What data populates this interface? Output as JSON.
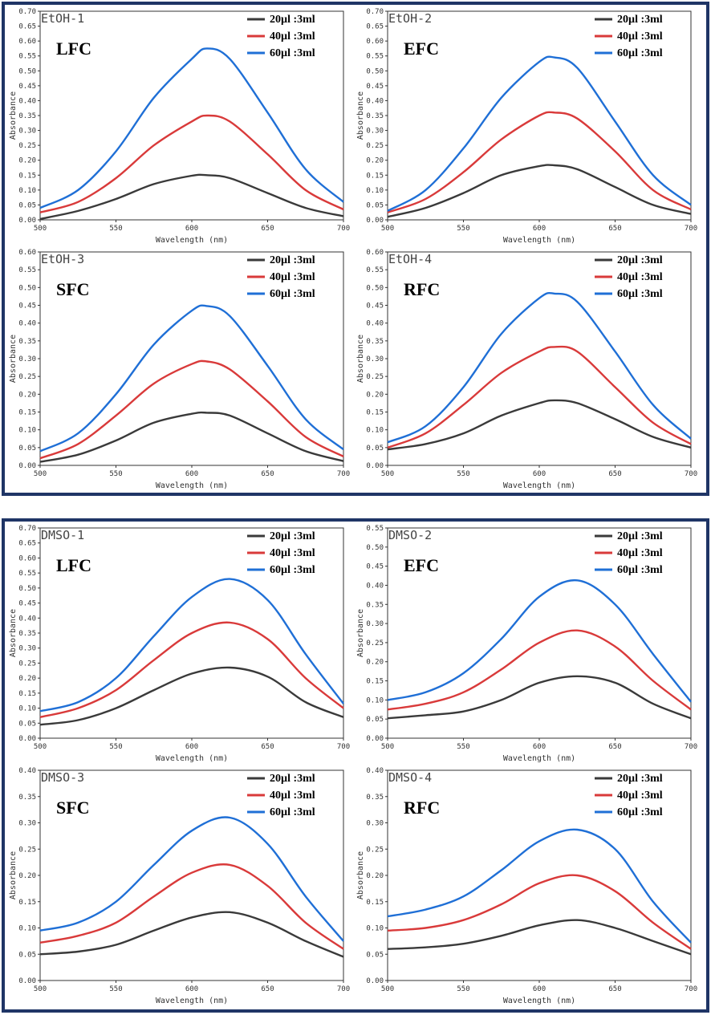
{
  "groups": [
    {
      "name": "ethanol"
    },
    {
      "name": "dmso"
    }
  ],
  "chart_data": [
    {
      "type": "line",
      "sample_label": "EtOH-1",
      "fraction_label": "LFC",
      "xlabel": "Wavelength (nm)",
      "ylabel": "Absorbance",
      "xlim": [
        500,
        700
      ],
      "ylim": [
        0,
        0.7
      ],
      "x_ticks": [
        "500",
        "550",
        "600",
        "650",
        "700"
      ],
      "y_ticks": [
        "0.00",
        "0.05",
        "0.10",
        "0.15",
        "0.20",
        "0.25",
        "0.30",
        "0.35",
        "0.40",
        "0.45",
        "0.50",
        "0.55",
        "0.60",
        "0.65",
        "0.70"
      ],
      "x": [
        500,
        525,
        550,
        575,
        600,
        610,
        625,
        650,
        675,
        700
      ],
      "legend_position": "top-right",
      "series": [
        {
          "name": "20µl :3ml",
          "color": "#3a3a3a",
          "values": [
            0.003,
            0.03,
            0.07,
            0.12,
            0.148,
            0.15,
            0.14,
            0.09,
            0.04,
            0.012
          ]
        },
        {
          "name": "40µl :3ml",
          "color": "#d93a3a",
          "values": [
            0.025,
            0.06,
            0.14,
            0.25,
            0.33,
            0.35,
            0.33,
            0.22,
            0.1,
            0.035
          ]
        },
        {
          "name": "60µl :3ml",
          "color": "#1f6fd6",
          "values": [
            0.04,
            0.1,
            0.23,
            0.41,
            0.54,
            0.575,
            0.54,
            0.36,
            0.17,
            0.06
          ]
        }
      ]
    },
    {
      "type": "line",
      "sample_label": "EtOH-2",
      "fraction_label": "EFC",
      "xlabel": "Wavelength (nm)",
      "ylabel": "Absorbance",
      "xlim": [
        500,
        700
      ],
      "ylim": [
        0,
        0.7
      ],
      "x_ticks": [
        "500",
        "550",
        "600",
        "650",
        "700"
      ],
      "y_ticks": [
        "0.00",
        "0.05",
        "0.10",
        "0.15",
        "0.20",
        "0.25",
        "0.30",
        "0.35",
        "0.40",
        "0.45",
        "0.50",
        "0.55",
        "0.60",
        "0.65",
        "0.70"
      ],
      "x": [
        500,
        525,
        550,
        575,
        600,
        610,
        625,
        650,
        675,
        700
      ],
      "legend_position": "top-right",
      "series": [
        {
          "name": "20µl :3ml",
          "color": "#3a3a3a",
          "values": [
            0.01,
            0.04,
            0.09,
            0.15,
            0.18,
            0.183,
            0.17,
            0.11,
            0.05,
            0.02
          ]
        },
        {
          "name": "40µl :3ml",
          "color": "#d93a3a",
          "values": [
            0.025,
            0.07,
            0.16,
            0.27,
            0.35,
            0.36,
            0.34,
            0.23,
            0.1,
            0.035
          ]
        },
        {
          "name": "60µl :3ml",
          "color": "#1f6fd6",
          "values": [
            0.03,
            0.1,
            0.24,
            0.41,
            0.53,
            0.545,
            0.51,
            0.33,
            0.15,
            0.05
          ]
        }
      ]
    },
    {
      "type": "line",
      "sample_label": "EtOH-3",
      "fraction_label": "SFC",
      "xlabel": "Wavelength (nm)",
      "ylabel": "Absorbance",
      "xlim": [
        500,
        700
      ],
      "ylim": [
        0,
        0.6
      ],
      "x_ticks": [
        "500",
        "550",
        "600",
        "650",
        "700"
      ],
      "y_ticks": [
        "0.00",
        "0.05",
        "0.10",
        "0.15",
        "0.20",
        "0.25",
        "0.30",
        "0.35",
        "0.40",
        "0.45",
        "0.50",
        "0.55",
        "0.60"
      ],
      "x": [
        500,
        525,
        550,
        575,
        600,
        610,
        625,
        650,
        675,
        700
      ],
      "legend_position": "top-right",
      "series": [
        {
          "name": "20µl :3ml",
          "color": "#3a3a3a",
          "values": [
            0.01,
            0.03,
            0.07,
            0.12,
            0.145,
            0.148,
            0.14,
            0.09,
            0.04,
            0.012
          ]
        },
        {
          "name": "40µl :3ml",
          "color": "#d93a3a",
          "values": [
            0.02,
            0.06,
            0.14,
            0.23,
            0.285,
            0.292,
            0.27,
            0.18,
            0.08,
            0.025
          ]
        },
        {
          "name": "60µl :3ml",
          "color": "#1f6fd6",
          "values": [
            0.04,
            0.09,
            0.2,
            0.34,
            0.435,
            0.448,
            0.42,
            0.28,
            0.13,
            0.045
          ]
        }
      ]
    },
    {
      "type": "line",
      "sample_label": "EtOH-4",
      "fraction_label": "RFC",
      "xlabel": "Wavelength (nm)",
      "ylabel": "Absorbance",
      "xlim": [
        500,
        700
      ],
      "ylim": [
        0,
        0.6
      ],
      "x_ticks": [
        "500",
        "550",
        "600",
        "650",
        "700"
      ],
      "y_ticks": [
        "0.00",
        "0.05",
        "0.10",
        "0.15",
        "0.20",
        "0.25",
        "0.30",
        "0.35",
        "0.40",
        "0.45",
        "0.50",
        "0.55",
        "0.60"
      ],
      "x": [
        500,
        525,
        550,
        575,
        600,
        610,
        625,
        650,
        675,
        700
      ],
      "legend_position": "top-right",
      "series": [
        {
          "name": "20µl :3ml",
          "color": "#3a3a3a",
          "values": [
            0.045,
            0.06,
            0.09,
            0.14,
            0.175,
            0.183,
            0.175,
            0.13,
            0.08,
            0.05
          ]
        },
        {
          "name": "40µl :3ml",
          "color": "#d93a3a",
          "values": [
            0.05,
            0.09,
            0.17,
            0.26,
            0.32,
            0.333,
            0.32,
            0.22,
            0.12,
            0.06
          ]
        },
        {
          "name": "60µl :3ml",
          "color": "#1f6fd6",
          "values": [
            0.065,
            0.11,
            0.22,
            0.37,
            0.47,
            0.483,
            0.46,
            0.32,
            0.17,
            0.075
          ]
        }
      ]
    },
    {
      "type": "line",
      "sample_label": "DMSO-1",
      "fraction_label": "LFC",
      "xlabel": "Wavelength (nm)",
      "ylabel": "Absorbance",
      "xlim": [
        500,
        700
      ],
      "ylim": [
        0,
        0.7
      ],
      "x_ticks": [
        "500",
        "550",
        "600",
        "650",
        "700"
      ],
      "y_ticks": [
        "0.00",
        "0.05",
        "0.10",
        "0.15",
        "0.20",
        "0.25",
        "0.30",
        "0.35",
        "0.40",
        "0.45",
        "0.50",
        "0.55",
        "0.60",
        "0.65",
        "0.70"
      ],
      "x": [
        500,
        525,
        550,
        575,
        600,
        625,
        650,
        675,
        700
      ],
      "legend_position": "top-right",
      "series": [
        {
          "name": "20µl :3ml",
          "color": "#3a3a3a",
          "values": [
            0.045,
            0.06,
            0.1,
            0.16,
            0.215,
            0.235,
            0.205,
            0.12,
            0.07
          ]
        },
        {
          "name": "40µl :3ml",
          "color": "#d93a3a",
          "values": [
            0.07,
            0.1,
            0.16,
            0.26,
            0.35,
            0.385,
            0.33,
            0.2,
            0.1
          ]
        },
        {
          "name": "60µl :3ml",
          "color": "#1f6fd6",
          "values": [
            0.09,
            0.12,
            0.2,
            0.34,
            0.47,
            0.53,
            0.46,
            0.28,
            0.115
          ]
        }
      ]
    },
    {
      "type": "line",
      "sample_label": "DMSO-2",
      "fraction_label": "EFC",
      "xlabel": "Wavelength (nm)",
      "ylabel": "Absorbance",
      "xlim": [
        500,
        700
      ],
      "ylim": [
        0,
        0.55
      ],
      "x_ticks": [
        "500",
        "550",
        "600",
        "650",
        "700"
      ],
      "y_ticks": [
        "0.00",
        "0.05",
        "0.10",
        "0.15",
        "0.20",
        "0.25",
        "0.30",
        "0.35",
        "0.40",
        "0.45",
        "0.50",
        "0.55"
      ],
      "x": [
        500,
        525,
        550,
        575,
        600,
        625,
        650,
        675,
        700
      ],
      "legend_position": "top-right",
      "series": [
        {
          "name": "20µl :3ml",
          "color": "#3a3a3a",
          "values": [
            0.052,
            0.06,
            0.07,
            0.1,
            0.145,
            0.162,
            0.145,
            0.09,
            0.052
          ]
        },
        {
          "name": "40µl :3ml",
          "color": "#d93a3a",
          "values": [
            0.075,
            0.09,
            0.12,
            0.18,
            0.25,
            0.282,
            0.24,
            0.15,
            0.075
          ]
        },
        {
          "name": "60µl :3ml",
          "color": "#1f6fd6",
          "values": [
            0.1,
            0.12,
            0.17,
            0.26,
            0.37,
            0.413,
            0.35,
            0.22,
            0.095
          ]
        }
      ]
    },
    {
      "type": "line",
      "sample_label": "DMSO-3",
      "fraction_label": "SFC",
      "xlabel": "Wavelength (nm)",
      "ylabel": "Absorbance",
      "xlim": [
        500,
        700
      ],
      "ylim": [
        0,
        0.4
      ],
      "x_ticks": [
        "500",
        "550",
        "600",
        "650",
        "700"
      ],
      "y_ticks": [
        "0.00",
        "0.05",
        "0.10",
        "0.15",
        "0.20",
        "0.25",
        "0.30",
        "0.35",
        "0.40"
      ],
      "x": [
        500,
        525,
        550,
        575,
        600,
        625,
        650,
        675,
        700
      ],
      "legend_position": "top-right",
      "series": [
        {
          "name": "20µl :3ml",
          "color": "#3a3a3a",
          "values": [
            0.05,
            0.055,
            0.068,
            0.095,
            0.12,
            0.13,
            0.11,
            0.075,
            0.045
          ]
        },
        {
          "name": "40µl :3ml",
          "color": "#d93a3a",
          "values": [
            0.072,
            0.085,
            0.11,
            0.16,
            0.205,
            0.22,
            0.18,
            0.11,
            0.06
          ]
        },
        {
          "name": "60µl :3ml",
          "color": "#1f6fd6",
          "values": [
            0.095,
            0.11,
            0.15,
            0.22,
            0.285,
            0.31,
            0.26,
            0.16,
            0.075
          ]
        }
      ]
    },
    {
      "type": "line",
      "sample_label": "DMSO-4",
      "fraction_label": "RFC",
      "xlabel": "Wavelength (nm)",
      "ylabel": "Absorbance",
      "xlim": [
        500,
        700
      ],
      "ylim": [
        0,
        0.4
      ],
      "x_ticks": [
        "500",
        "550",
        "600",
        "650",
        "700"
      ],
      "y_ticks": [
        "0.00",
        "0.05",
        "0.10",
        "0.15",
        "0.20",
        "0.25",
        "0.30",
        "0.35",
        "0.40"
      ],
      "x": [
        500,
        525,
        550,
        575,
        600,
        625,
        650,
        675,
        700
      ],
      "legend_position": "top-right",
      "series": [
        {
          "name": "20µl :3ml",
          "color": "#3a3a3a",
          "values": [
            0.06,
            0.063,
            0.07,
            0.085,
            0.105,
            0.115,
            0.1,
            0.075,
            0.05
          ]
        },
        {
          "name": "40µl :3ml",
          "color": "#d93a3a",
          "values": [
            0.095,
            0.1,
            0.115,
            0.145,
            0.185,
            0.2,
            0.17,
            0.11,
            0.06
          ]
        },
        {
          "name": "60µl :3ml",
          "color": "#1f6fd6",
          "values": [
            0.122,
            0.135,
            0.16,
            0.21,
            0.265,
            0.287,
            0.25,
            0.15,
            0.072
          ]
        }
      ]
    }
  ]
}
